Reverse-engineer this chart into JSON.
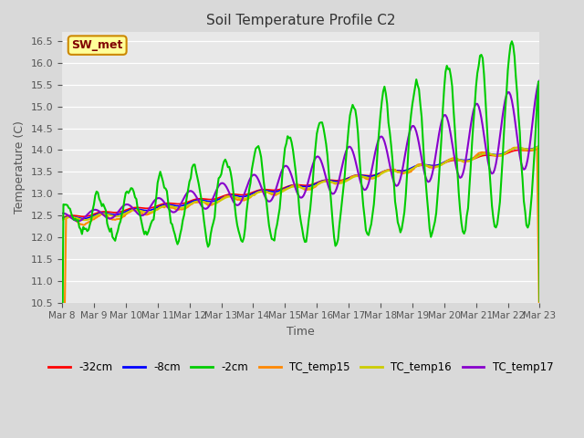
{
  "title": "Soil Temperature Profile C2",
  "xlabel": "Time",
  "ylabel": "Temperature (C)",
  "ylim": [
    10.5,
    16.7
  ],
  "background_color": "#d9d9d9",
  "plot_bg_color": "#e8e8e8",
  "annotation_text": "SW_met",
  "annotation_bg": "#ffff99",
  "annotation_border": "#cc8800",
  "annotation_text_color": "#800000",
  "x_tick_labels": [
    "Mar 8",
    "Mar 9",
    "Mar 10",
    "Mar 11",
    "Mar 12",
    "Mar 13",
    "Mar 14",
    "Mar 15",
    "Mar 16",
    "Mar 17",
    "Mar 18",
    "Mar 19",
    "Mar 20",
    "Mar 21",
    "Mar 22",
    "Mar 23"
  ],
  "legend_entries": [
    "-32cm",
    "-8cm",
    "-2cm",
    "TC_temp15",
    "TC_temp16",
    "TC_temp17"
  ],
  "legend_colors": [
    "#ff0000",
    "#0000ff",
    "#00cc00",
    "#ff8800",
    "#cccc00",
    "#8800cc"
  ],
  "series_colors": {
    "neg32": "#ff0000",
    "neg8": "#0000ff",
    "neg2": "#00cc00",
    "tc15": "#ff8800",
    "tc16": "#cccc00",
    "tc17": "#8800cc"
  }
}
